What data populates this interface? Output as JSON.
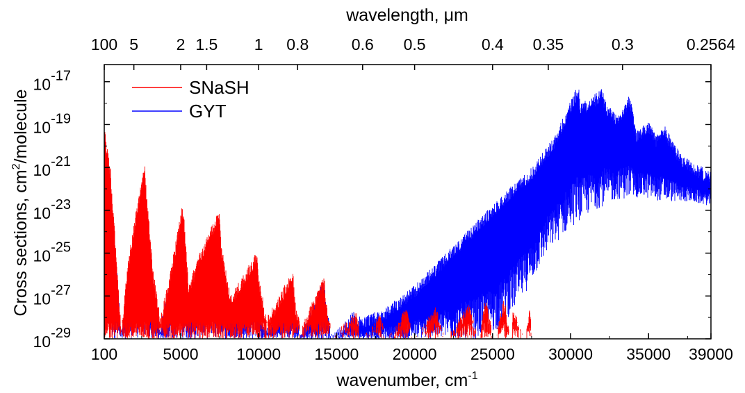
{
  "chart_data": {
    "type": "line",
    "title": "",
    "xlabel": "wavenumber, cm",
    "xlabel_sup": "-1",
    "x2label_prefix": "wavelength, ",
    "x2label_unit": "μm",
    "ylabel_prefix": "Cross sections, cm",
    "ylabel_sup": "2",
    "ylabel_suffix": "/molecule",
    "xlim": [
      100,
      39000
    ],
    "ylim_log10": [
      -29,
      -16.2
    ],
    "yscale": "log",
    "grid": false,
    "legend_position": "top-left",
    "x_ticks": [
      {
        "value": 100,
        "label": "100"
      },
      {
        "value": 5000,
        "label": "5000"
      },
      {
        "value": 10000,
        "label": "10000"
      },
      {
        "value": 15000,
        "label": "15000"
      },
      {
        "value": 20000,
        "label": "20000"
      },
      {
        "value": 25000,
        "label": "25000"
      },
      {
        "value": 30000,
        "label": "30000"
      },
      {
        "value": 35000,
        "label": "35000"
      },
      {
        "value": 39000,
        "label": "39000"
      }
    ],
    "y_ticks": [
      {
        "exp": -29,
        "base": "10",
        "sup": "-29"
      },
      {
        "exp": -27,
        "base": "10",
        "sup": "-27"
      },
      {
        "exp": -25,
        "base": "10",
        "sup": "-25"
      },
      {
        "exp": -23,
        "base": "10",
        "sup": "-23"
      },
      {
        "exp": -21,
        "base": "10",
        "sup": "-21"
      },
      {
        "exp": -19,
        "base": "10",
        "sup": "-19"
      },
      {
        "exp": -17,
        "base": "10",
        "sup": "-17"
      }
    ],
    "x2_ticks": [
      {
        "wavenumber": 100,
        "label": "100"
      },
      {
        "wavenumber": 2000,
        "label": "5"
      },
      {
        "wavenumber": 5000,
        "label": "2"
      },
      {
        "wavenumber": 6667,
        "label": "1.5"
      },
      {
        "wavenumber": 10000,
        "label": "1"
      },
      {
        "wavenumber": 12500,
        "label": "0.8"
      },
      {
        "wavenumber": 16667,
        "label": "0.6"
      },
      {
        "wavenumber": 20000,
        "label": "0.5"
      },
      {
        "wavenumber": 25000,
        "label": "0.4"
      },
      {
        "wavenumber": 28571,
        "label": "0.35"
      },
      {
        "wavenumber": 33333,
        "label": "0.3"
      },
      {
        "wavenumber": 39000,
        "label": "0.2564"
      }
    ],
    "series": [
      {
        "name": "SNaSH",
        "color": "#ff0000",
        "upper_envelope": {
          "x": [
            100,
            120,
            500,
            1200,
            1500,
            2000,
            2700,
            2800,
            3200,
            3700,
            4300,
            5100,
            5200,
            5500,
            6200,
            7500,
            7600,
            8200,
            9900,
            10000,
            10500,
            12200,
            12300,
            12700,
            14200,
            14300,
            14700,
            16200,
            16300,
            16600,
            17700,
            17800,
            18200,
            19400,
            19500,
            20000,
            21300,
            21400,
            22000,
            23400,
            23500,
            24100,
            24500,
            24600,
            25100,
            25700,
            25800,
            26200,
            26300,
            27100,
            27400,
            27500
          ],
          "log_y": [
            -19.3,
            -19.2,
            -21.0,
            -28.6,
            -26.0,
            -23.6,
            -20.8,
            -22.0,
            -25.5,
            -28.0,
            -26.0,
            -22.7,
            -23.0,
            -26.5,
            -25.0,
            -22.9,
            -24.5,
            -27.0,
            -24.9,
            -26.0,
            -28.0,
            -25.8,
            -27.0,
            -28.5,
            -26.0,
            -27.0,
            -28.8,
            -27.8,
            -27.8,
            -29.0,
            -27.8,
            -27.8,
            -29.0,
            -27.6,
            -27.6,
            -29.0,
            -27.5,
            -27.5,
            -29.0,
            -27.4,
            -27.4,
            -29.0,
            -27.3,
            -27.2,
            -29.0,
            -27.2,
            -27.3,
            -29.0,
            -27.5,
            -29.0,
            -27.4,
            -29.0
          ]
        }
      },
      {
        "name": "GYT",
        "color": "#0000ff",
        "upper_envelope": {
          "x": [
            100,
            120,
            500,
            1200,
            1500,
            2000,
            2700,
            2800,
            3200,
            3700,
            4300,
            5100,
            5200,
            5500,
            6200,
            7500,
            7600,
            8200,
            9900,
            10000,
            10500,
            12200,
            12300,
            12700,
            14200,
            14300,
            14700,
            16200,
            16300,
            18000,
            20000,
            22000,
            24000,
            26000,
            27500,
            29000,
            30500,
            30600,
            31200,
            32000,
            32300,
            33000,
            33800,
            34200,
            35000,
            35500,
            36000,
            37000,
            38000,
            39000
          ],
          "log_y": [
            -19.4,
            -19.3,
            -21.5,
            -28.8,
            -27.0,
            -25.0,
            -21.6,
            -22.8,
            -26.5,
            -28.3,
            -26.5,
            -23.5,
            -25.0,
            -27.5,
            -26.0,
            -23.5,
            -25.5,
            -27.5,
            -25.8,
            -27.5,
            -28.5,
            -26.5,
            -27.5,
            -28.8,
            -26.2,
            -27.3,
            -28.8,
            -27.6,
            -28.0,
            -27.6,
            -26.5,
            -25.0,
            -23.5,
            -22.0,
            -21.0,
            -19.5,
            -17.1,
            -17.9,
            -17.8,
            -17.3,
            -18.0,
            -18.5,
            -17.6,
            -19.3,
            -18.8,
            -19.5,
            -19.0,
            -20.3,
            -20.8,
            -21.2
          ]
        },
        "lower_envelope": {
          "x": [
            100,
            3000,
            6000,
            9000,
            12000,
            15000,
            18000,
            20000,
            22000,
            24000,
            25500,
            27000,
            28500,
            30000,
            31500,
            33000,
            34500,
            36000,
            37500,
            39000
          ],
          "log_y": [
            -29.0,
            -29.0,
            -29.0,
            -29.0,
            -29.0,
            -29.0,
            -29.0,
            -29.0,
            -29.0,
            -29.0,
            -28.5,
            -27.0,
            -25.0,
            -23.8,
            -23.0,
            -22.5,
            -22.4,
            -22.6,
            -22.6,
            -22.8
          ]
        }
      }
    ],
    "legend": [
      "SNaSH",
      "GYT"
    ]
  }
}
